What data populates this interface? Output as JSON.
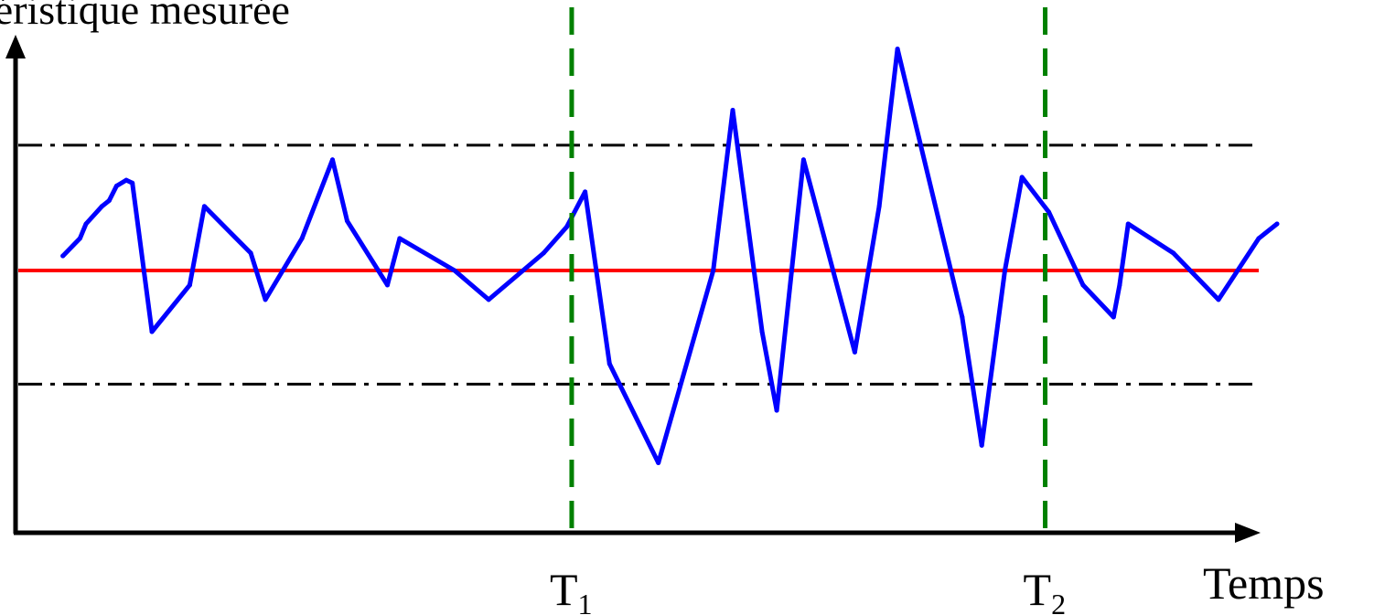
{
  "chart_data": {
    "type": "line",
    "ylabel": "téristique mesurée",
    "xlabel": "Temps",
    "xlim": [
      0,
      100
    ],
    "ylim": [
      -10,
      10
    ],
    "grid": false,
    "center_line": {
      "value": 0,
      "color": "#ff0000"
    },
    "control_limits": {
      "upper": 4.3,
      "lower": -3.9,
      "color": "#000000",
      "style": "dash-dot"
    },
    "markers": [
      {
        "name": "T",
        "sub": "1",
        "x": 43.7,
        "color": "#008000"
      },
      {
        "name": "T",
        "sub": "2",
        "x": 82.5,
        "color": "#008000"
      }
    ],
    "series": [
      {
        "color": "#0000ff",
        "points": [
          [
            2.0,
            0.5
          ],
          [
            3.4,
            1.1
          ],
          [
            3.9,
            1.6
          ],
          [
            5.2,
            2.2
          ],
          [
            5.8,
            2.4
          ],
          [
            6.4,
            2.9
          ],
          [
            7.2,
            3.1
          ],
          [
            7.7,
            3.0
          ],
          [
            9.3,
            -2.1
          ],
          [
            12.4,
            -0.5
          ],
          [
            13.6,
            2.2
          ],
          [
            17.4,
            0.6
          ],
          [
            18.6,
            -1.0
          ],
          [
            21.6,
            1.1
          ],
          [
            24.1,
            3.8
          ],
          [
            25.3,
            1.7
          ],
          [
            28.6,
            -0.5
          ],
          [
            29.6,
            1.1
          ],
          [
            34.1,
            0.0
          ],
          [
            36.9,
            -1.0
          ],
          [
            41.4,
            0.6
          ],
          [
            43.3,
            1.5
          ],
          [
            44.8,
            2.7
          ],
          [
            46.8,
            -3.2
          ],
          [
            50.8,
            -6.6
          ],
          [
            55.3,
            0.0
          ],
          [
            56.9,
            5.5
          ],
          [
            59.3,
            -2.1
          ],
          [
            60.5,
            -4.8
          ],
          [
            62.7,
            3.8
          ],
          [
            66.9,
            -2.8
          ],
          [
            68.9,
            2.2
          ],
          [
            70.4,
            7.6
          ],
          [
            75.7,
            -1.6
          ],
          [
            77.3,
            -6.0
          ],
          [
            79.2,
            0.0
          ],
          [
            80.6,
            3.2
          ],
          [
            82.8,
            2.0
          ],
          [
            85.6,
            -0.5
          ],
          [
            88.1,
            -1.6
          ],
          [
            88.6,
            -0.5
          ],
          [
            89.3,
            1.6
          ],
          [
            93.0,
            0.6
          ],
          [
            96.7,
            -1.0
          ],
          [
            100.0,
            1.1
          ],
          [
            101.5,
            1.6
          ]
        ]
      }
    ]
  }
}
